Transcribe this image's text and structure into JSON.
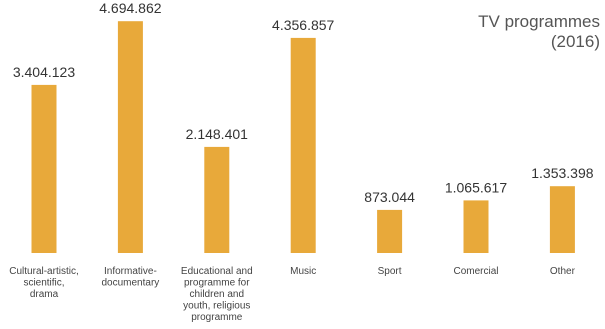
{
  "chart_data": {
    "type": "bar",
    "title": [
      "TV programmes",
      "(2016)"
    ],
    "categories": [
      [
        "Cultural-artistic,",
        "scientific,",
        "drama"
      ],
      [
        "Informative-",
        "documentary"
      ],
      [
        "Educational and",
        "programme for",
        "children and",
        "youth, religious",
        "programme"
      ],
      [
        "Music"
      ],
      [
        "Sport"
      ],
      [
        "Comercial"
      ],
      [
        "Other"
      ]
    ],
    "values": [
      3404123,
      4694862,
      2148401,
      4356857,
      873044,
      1065617,
      1353398
    ],
    "value_labels": [
      "3.404.123",
      "4.694.862",
      "2.148.401",
      "4.356.857",
      "873.044",
      "1.065.617",
      "1.353.398"
    ],
    "ylim": [
      0,
      4760000
    ],
    "grid": false,
    "bar_color": "#e8a93a"
  }
}
